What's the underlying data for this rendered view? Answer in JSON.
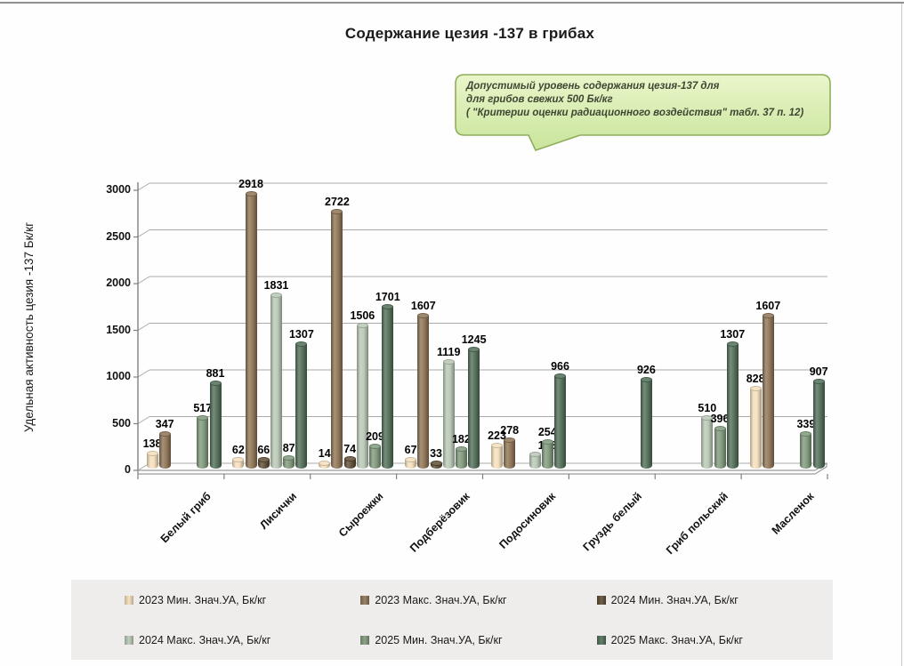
{
  "chart_data": {
    "type": "bar",
    "title": "Содержание цезия -137 в грибах",
    "ylabel": "Удельная активность цезия -137 Бк/кг",
    "xlabel": "",
    "ylim": [
      0,
      3000
    ],
    "yticks": [
      0,
      500,
      1000,
      1500,
      2000,
      2500,
      3000
    ],
    "grid": true,
    "legend_position": "bottom",
    "categories": [
      "Белый гриб",
      "Лисички",
      "Сыроежки",
      "Подберёзовик",
      "Подосиновик",
      "Груздь белый",
      "Гриб польский",
      "Масленок"
    ],
    "series": [
      {
        "name": "2023 Мин. Знач.УА, Бк/кг",
        "color": "#f5dfbc",
        "values": [
          138,
          62,
          14,
          67,
          223,
          null,
          null,
          828
        ]
      },
      {
        "name": "2023 Макс. Знач.УА, Бк/кг",
        "color": "#8d7355",
        "values": [
          347,
          2918,
          2722,
          1607,
          278,
          null,
          null,
          1607
        ]
      },
      {
        "name": "2024 Мин. Знач.УА, Бк/кг",
        "color": "#5e4c34",
        "values": [
          null,
          66,
          74,
          33,
          null,
          null,
          null,
          null
        ]
      },
      {
        "name": "2024 Макс. Знач.УА, Бк/кг",
        "color": "#b9c8b6",
        "values": [
          null,
          1831,
          1506,
          1119,
          128,
          null,
          510,
          null
        ]
      },
      {
        "name": "2025 Мин. Знач.УА, Бк/кг",
        "color": "#7f987b",
        "values": [
          517,
          87,
          209,
          182,
          254,
          null,
          396,
          339
        ]
      },
      {
        "name": "2025 Макс. Знач.УА, Бк/кг",
        "color": "#506d57",
        "values": [
          881,
          1307,
          1701,
          1245,
          966,
          926,
          1307,
          907
        ]
      }
    ],
    "label_nudges": [
      {
        "series": 3,
        "category": 4,
        "dx": 14,
        "dy": 1
      }
    ],
    "annotation": {
      "lines": [
        "Допустимый уровень содержания цезия-137 для",
        " для грибов свежих 500 Бк/кг",
        "( \"Критерии оценки радиационного воздействия\" табл. 37 п. 12)"
      ],
      "fill_top": "#eaf6cb",
      "fill_bottom": "#c9e49b",
      "border": "#8fae5b"
    }
  }
}
